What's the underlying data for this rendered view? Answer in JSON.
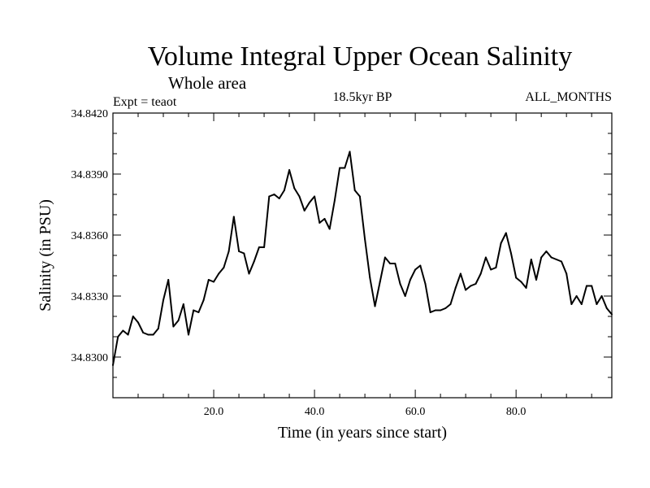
{
  "chart_data": {
    "type": "line",
    "title": "Volume Integral Upper Ocean Salinity",
    "subtitle": "Whole area",
    "left_label": "Expt = teaot",
    "center_label": "18.5kyr BP",
    "right_label": "ALL_MONTHS",
    "xlabel": "Time (in years since start)",
    "ylabel": "Salinity (in PSU)",
    "xlim": [
      0,
      99
    ],
    "ylim": [
      34.828,
      34.842
    ],
    "x_ticks": [
      {
        "value": 20,
        "label": "20.0"
      },
      {
        "value": 40,
        "label": "40.0"
      },
      {
        "value": 60,
        "label": "60.0"
      },
      {
        "value": 80,
        "label": "80.0"
      }
    ],
    "x_minor_ticks": [
      5,
      10,
      15,
      25,
      30,
      35,
      45,
      50,
      55,
      65,
      70,
      75,
      85,
      90,
      95
    ],
    "y_ticks": [
      {
        "value": 34.83,
        "label": "34.8300"
      },
      {
        "value": 34.833,
        "label": "34.8330"
      },
      {
        "value": 34.836,
        "label": "34.8360"
      },
      {
        "value": 34.839,
        "label": "34.8390"
      },
      {
        "value": 34.842,
        "label": "34.8420"
      }
    ],
    "y_minor_ticks": [
      34.829,
      34.831,
      34.832,
      34.834,
      34.835,
      34.837,
      34.838,
      34.84,
      34.841
    ],
    "series": [
      {
        "name": "Salinity",
        "color": "#000000",
        "x": [
          0,
          1,
          2,
          3,
          4,
          5,
          6,
          7,
          8,
          9,
          10,
          11,
          12,
          13,
          14,
          15,
          16,
          17,
          18,
          19,
          20,
          21,
          22,
          23,
          24,
          25,
          26,
          27,
          28,
          29,
          30,
          31,
          32,
          33,
          34,
          35,
          36,
          37,
          38,
          39,
          40,
          41,
          42,
          43,
          44,
          45,
          46,
          47,
          48,
          49,
          50,
          51,
          52,
          53,
          54,
          55,
          56,
          57,
          58,
          59,
          60,
          61,
          62,
          63,
          64,
          65,
          66,
          67,
          68,
          69,
          70,
          71,
          72,
          73,
          74,
          75,
          76,
          77,
          78,
          79,
          80,
          81,
          82,
          83,
          84,
          85,
          86,
          87,
          88,
          89,
          90,
          91,
          92,
          93,
          94,
          95,
          96,
          97,
          98,
          99
        ],
        "y": [
          34.8296,
          34.831,
          34.8313,
          34.8311,
          34.832,
          34.8317,
          34.8312,
          34.8311,
          34.8311,
          34.8314,
          34.8328,
          34.8338,
          34.8315,
          34.8318,
          34.8326,
          34.8311,
          34.8323,
          34.8322,
          34.8328,
          34.8338,
          34.8337,
          34.8341,
          34.8344,
          34.8352,
          34.8369,
          34.8352,
          34.8351,
          34.8341,
          34.8347,
          34.8354,
          34.8354,
          34.8379,
          34.838,
          34.8378,
          34.8382,
          34.8392,
          34.8383,
          34.8379,
          34.8372,
          34.8376,
          34.8379,
          34.8366,
          34.8368,
          34.8363,
          34.8377,
          34.8393,
          34.8393,
          34.8401,
          34.8382,
          34.8379,
          34.8358,
          34.8339,
          34.8325,
          34.8337,
          34.8349,
          34.8346,
          34.8346,
          34.8336,
          34.833,
          34.8338,
          34.8343,
          34.8345,
          34.8336,
          34.8322,
          34.8323,
          34.8323,
          34.8324,
          34.8326,
          34.8334,
          34.8341,
          34.8333,
          34.8335,
          34.8336,
          34.8341,
          34.8349,
          34.8343,
          34.8344,
          34.8356,
          34.8361,
          34.8351,
          34.8339,
          34.8337,
          34.8334,
          34.8348,
          34.8338,
          34.8349,
          34.8352,
          34.8349,
          34.8348,
          34.8347,
          34.8341,
          34.8326,
          34.833,
          34.8326,
          34.8335,
          34.8335,
          34.8326,
          34.833,
          34.8324,
          34.8321
        ]
      }
    ]
  }
}
